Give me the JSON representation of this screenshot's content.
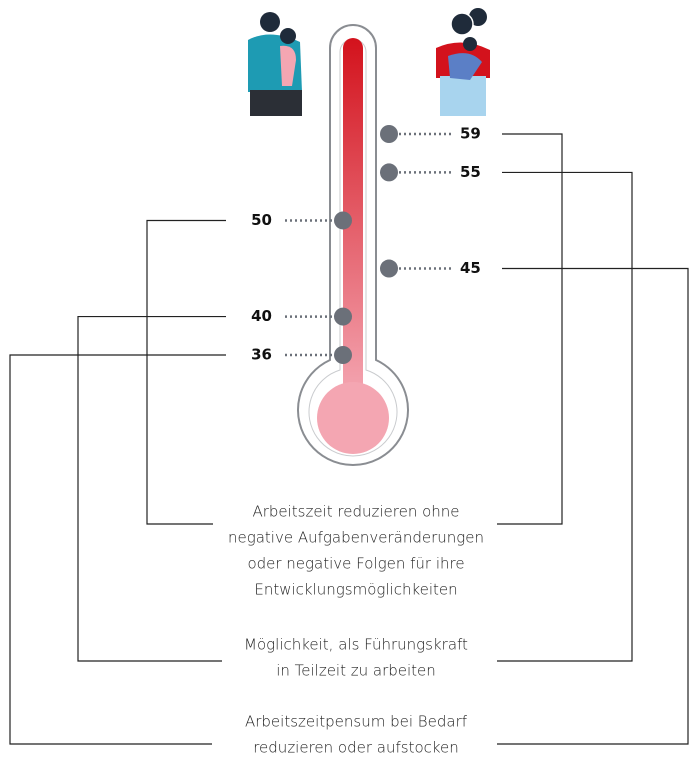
{
  "chart_data": {
    "type": "thermometer",
    "categories": [
      [
        "Arbeitszeit reduzieren ohne",
        "negative Aufgabenveränderungen",
        "oder negative Folgen für ihre",
        "Entwicklungsmöglichkeiten"
      ],
      [
        "Möglichkeit, als Führungskraft",
        "in Teilzeit zu arbeiten"
      ],
      [
        "Arbeitszeitpensum bei Bedarf",
        "reduzieren oder aufstocken"
      ]
    ],
    "series": [
      {
        "color": "#6b7079",
        "values": [
          50,
          40,
          36
        ]
      },
      {
        "color": "#6b7079",
        "values": [
          59,
          55,
          45
        ]
      }
    ]
  }
}
